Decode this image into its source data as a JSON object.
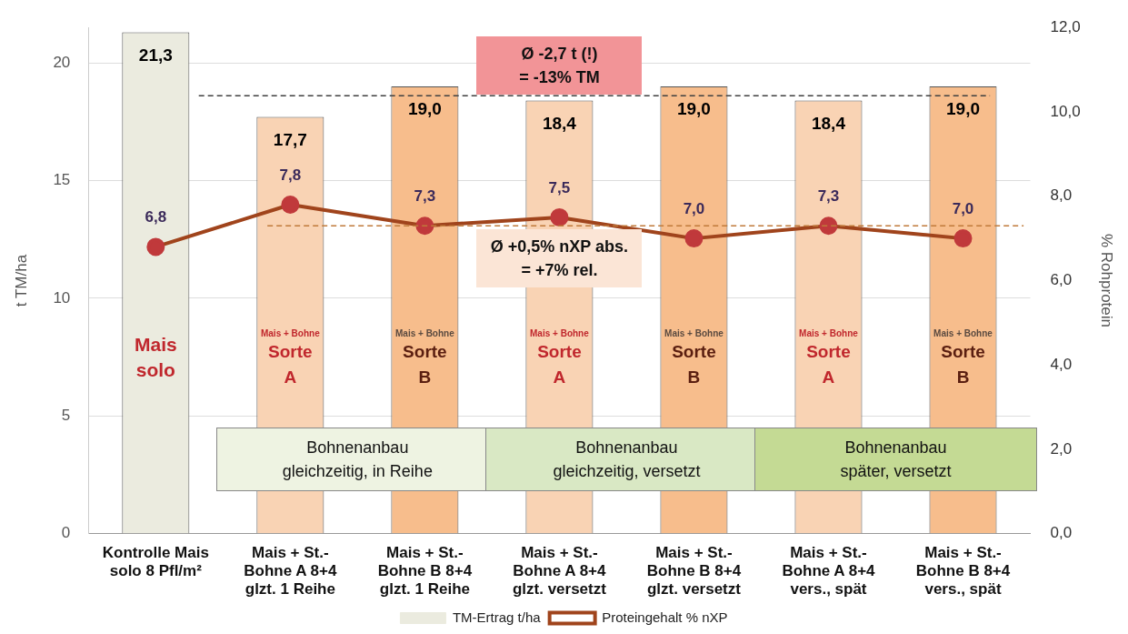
{
  "chart_data": {
    "type": "bar",
    "categories": [
      "Kontrolle Mais\nsolo 8 Pfl/m²",
      "Mais + St.-\nBohne A 8+4\nglzt. 1 Reihe",
      "Mais + St.-\nBohne B 8+4\nglzt. 1 Reihe",
      "Mais + St.-\nBohne A 8+4\nglzt. versetzt",
      "Mais + St.-\nBohne B 8+4\nglzt. versetzt",
      "Mais + St.-\nBohne A 8+4\nvers., spät",
      "Mais + St.-\nBohne B 8+4\nvers., spät"
    ],
    "series": [
      {
        "name": "TM-Ertrag t/ha",
        "color": "#ebebdf",
        "colors": [
          "#ebebdf",
          "#f9d3b4",
          "#f7bd8c",
          "#f9d3b4",
          "#f7bd8c",
          "#f9d3b4",
          "#f7bd8c"
        ],
        "values": [
          21.3,
          17.7,
          19.0,
          18.4,
          19.0,
          18.4,
          19.0
        ],
        "value_labels": [
          "21,3",
          "17,7",
          "19,0",
          "18,4",
          "19,0",
          "18,4",
          "19,0"
        ]
      },
      {
        "type": "line",
        "axis": "y2",
        "name": "Proteingehalt % nXP",
        "color": "#a0441c",
        "marker": "circle",
        "line_style": "solid",
        "values": [
          6.8,
          7.8,
          7.3,
          7.5,
          7.0,
          7.3,
          7.0
        ],
        "value_labels": [
          "6,8",
          "7,8",
          "7,3",
          "7,5",
          "7,0",
          "7,3",
          "7,0"
        ]
      }
    ],
    "ylabel": "t TM/ha",
    "y2label": "% Rohprotein",
    "ylim": [
      0,
      21.5
    ],
    "yticks": [
      0,
      5,
      10,
      15,
      20
    ],
    "y2lim": [
      0,
      12
    ],
    "y2ticks": [
      {
        "value": 0,
        "label": "0,0"
      },
      {
        "value": 2,
        "label": "2,0"
      },
      {
        "value": 4,
        "label": "4,0"
      },
      {
        "value": 6,
        "label": "6,0"
      },
      {
        "value": 8,
        "label": "8,0"
      },
      {
        "value": 10,
        "label": "10,0"
      },
      {
        "value": 12,
        "label": "12,0"
      }
    ],
    "grid": "y",
    "legend": "bottom",
    "ref_lines": [
      {
        "axis": "y",
        "value": 18.6,
        "color": "#404040",
        "line_style": "dashed"
      },
      {
        "axis": "y2",
        "value": 7.3,
        "color": "#c07a3a",
        "line_style": "dashed"
      }
    ],
    "annotations": [
      "Mais\nsolo",
      "Mais + Bohne\nSorte\nA",
      "Mais + Bohne\nSorte\nB",
      "Mais + Bohne\nSorte\nA",
      "Mais + Bohne\nSorte\nB",
      "Mais + Bohne\nSorte\nA",
      "Mais + Bohne\nSorte\nB",
      "Ø -2,7 t (!)\n= -13% TM",
      "Ø +0,5% nXP abs.\n= +7% rel.",
      "Bohnenanbau\ngleichzeitig, in Reihe",
      "Bohnenanbau\ngleichzeitig, versetzt",
      "Bohnenanbau\nspäter, versetzt"
    ]
  }
}
